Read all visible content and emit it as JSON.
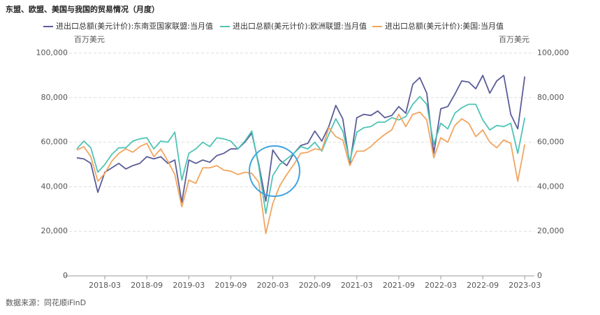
{
  "chart_data": {
    "type": "line",
    "title": "东盟、欧盟、美国与我国的贸易情况（月度）",
    "y_unit": "百万美元",
    "y2_unit": "百万美元",
    "source": "数据来源：同花顺iFinD",
    "categories": [
      null,
      null,
      null,
      null,
      "2018-03",
      null,
      null,
      null,
      null,
      null,
      "2018-09",
      null,
      null,
      null,
      null,
      null,
      "2019-03",
      null,
      null,
      null,
      null,
      null,
      "2019-09",
      null,
      null,
      null,
      null,
      null,
      "2020-03",
      null,
      null,
      null,
      null,
      null,
      "2020-09",
      null,
      null,
      null,
      null,
      null,
      "2021-03",
      null,
      null,
      null,
      null,
      null,
      "2021-09",
      null,
      null,
      null,
      null,
      null,
      "2022-03",
      null,
      null,
      null,
      null,
      null,
      "2022-09",
      null,
      null,
      null,
      null,
      null,
      "2023-03"
    ],
    "series": [
      {
        "name": "进出口总额(美元计价):东南亚国家联盟:当月值",
        "color": "#5b5d98",
        "values": [
          53000,
          52500,
          50500,
          37500,
          46500,
          48500,
          50500,
          48000,
          49500,
          50500,
          53500,
          52500,
          53500,
          50500,
          52000,
          33000,
          52000,
          50500,
          52000,
          51000,
          54000,
          55000,
          57000,
          57000,
          60000,
          64000,
          50000,
          33500,
          56500,
          52000,
          49500,
          55000,
          58500,
          59500,
          65000,
          60500,
          67000,
          76500,
          70500,
          50000,
          71000,
          72500,
          72000,
          74000,
          71000,
          72000,
          76000,
          73000,
          86000,
          89000,
          82000,
          55000,
          75000,
          76000,
          81500,
          87500,
          87000,
          84000,
          90000,
          82000,
          87500,
          90000,
          72500,
          66000,
          89500
        ]
      },
      {
        "name": "进出口总额(美元计价):欧洲联盟:当月值",
        "color": "#4fc4b6",
        "values": [
          57000,
          60500,
          57500,
          46500,
          50000,
          54500,
          57500,
          57500,
          60500,
          61500,
          62000,
          57000,
          60500,
          60000,
          64500,
          43000,
          55000,
          57000,
          60000,
          58000,
          62000,
          61500,
          60500,
          57000,
          60500,
          65000,
          49000,
          28000,
          45000,
          50000,
          52500,
          55000,
          58000,
          57000,
          60000,
          56000,
          63500,
          70500,
          65000,
          51500,
          64500,
          66500,
          67000,
          69000,
          69000,
          71000,
          70000,
          71500,
          77000,
          80500,
          77000,
          59000,
          68500,
          66000,
          73000,
          75500,
          77000,
          77000,
          70000,
          65500,
          67500,
          67000,
          68500,
          55000,
          71000
        ]
      },
      {
        "name": "进出口总额(美元计价):美国:当月值",
        "color": "#f2a55f",
        "values": [
          56500,
          58000,
          53500,
          42500,
          46000,
          51500,
          55000,
          57000,
          55500,
          58000,
          59500,
          53500,
          57000,
          51500,
          45500,
          31000,
          43000,
          41500,
          48500,
          48500,
          49500,
          47500,
          47000,
          45500,
          46500,
          46000,
          42000,
          19000,
          32500,
          40500,
          45500,
          50000,
          55000,
          55500,
          57000,
          56500,
          66500,
          62500,
          61000,
          49500,
          56000,
          56000,
          58000,
          61000,
          63500,
          65500,
          72500,
          67000,
          72500,
          73500,
          70000,
          53000,
          62000,
          60000,
          67500,
          70500,
          68500,
          62500,
          65500,
          60000,
          57500,
          61000,
          59500,
          42500,
          59000
        ]
      }
    ],
    "ylim": [
      0,
      100000
    ],
    "yticks": [
      0,
      {
        "value": 20000,
        "label": "20,000"
      },
      {
        "value": 40000,
        "label": "40,000"
      },
      {
        "value": 60000,
        "label": "60,000"
      },
      {
        "value": 80000,
        "label": "80,000"
      },
      {
        "value": 100000,
        "label": "100,000"
      }
    ],
    "y2lim": [
      0,
      100000
    ],
    "y2ticks": [
      0,
      {
        "value": 20000,
        "label": "20,000"
      },
      {
        "value": 40000,
        "label": "40,000"
      },
      {
        "value": 60000,
        "label": "60,000"
      },
      {
        "value": 80000,
        "label": "80,000"
      },
      {
        "value": 100000,
        "label": "100,000"
      }
    ],
    "grid": true
  }
}
